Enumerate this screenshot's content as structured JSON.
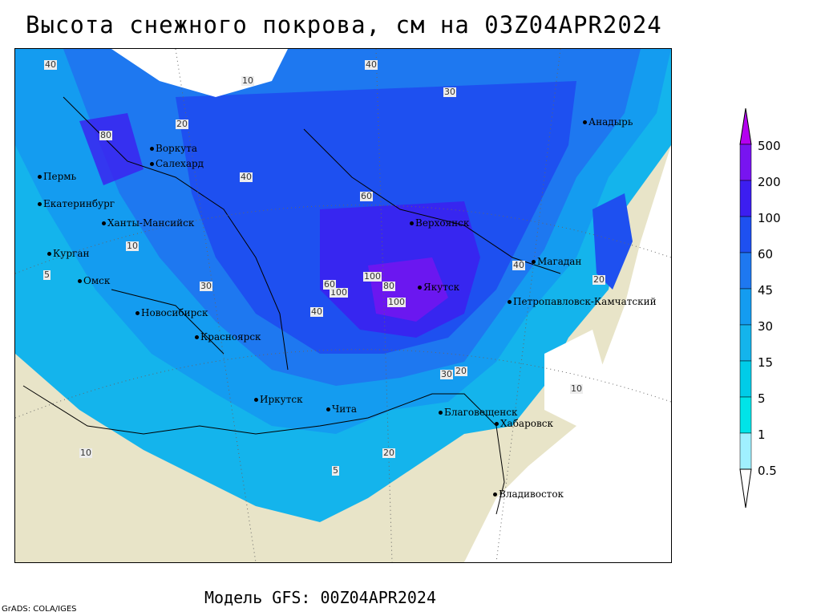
{
  "title": "Высота снежного покрова, см на 03Z04APR2024",
  "footer": "Модель GFS: 00Z04APR2024",
  "credit": "GrADS: COLA/IGES",
  "legend": {
    "levels": [
      "0.5",
      "1",
      "5",
      "15",
      "30",
      "45",
      "60",
      "100",
      "200",
      "500"
    ],
    "colors": [
      "#a0f0ff",
      "#00e4e8",
      "#00cce8",
      "#14b4ec",
      "#149cf0",
      "#1e78f0",
      "#1e50f0",
      "#3c1ef0",
      "#7814f0",
      "#b400f0"
    ]
  },
  "cities": [
    {
      "name": "Воркута"
    },
    {
      "name": "Салехард"
    },
    {
      "name": "Пермь"
    },
    {
      "name": "Екатеринбург"
    },
    {
      "name": "Ханты-Мансийск"
    },
    {
      "name": "Курган"
    },
    {
      "name": "Омск"
    },
    {
      "name": "Новосибирск"
    },
    {
      "name": "Красноярск"
    },
    {
      "name": "Иркутск"
    },
    {
      "name": "Чита"
    },
    {
      "name": "Верхоянск"
    },
    {
      "name": "Якутск"
    },
    {
      "name": "Магадан"
    },
    {
      "name": "Анадырь"
    },
    {
      "name": "Петропавловск-Камчатский"
    },
    {
      "name": "Благовещенск"
    },
    {
      "name": "Хабаровск"
    },
    {
      "name": "Владивосток"
    }
  ],
  "contour_labels": [
    "40",
    "20",
    "10",
    "30",
    "5",
    "60",
    "80",
    "100",
    "120"
  ]
}
